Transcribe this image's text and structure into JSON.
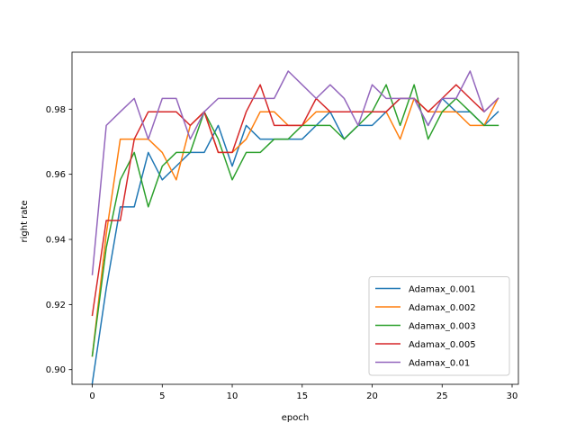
{
  "chart_data": {
    "type": "line",
    "title": "",
    "xlabel": "epoch",
    "ylabel": "right rate",
    "xlim": [
      -1.45,
      30.45
    ],
    "ylim": [
      0.8955,
      0.9975
    ],
    "xticks": [
      0,
      5,
      10,
      15,
      20,
      25,
      30
    ],
    "yticks": [
      0.9,
      0.92,
      0.94,
      0.96,
      0.98
    ],
    "ytick_labels": [
      "0.90",
      "0.92",
      "0.94",
      "0.96",
      "0.98"
    ],
    "grid": false,
    "legend_position": "lower-right",
    "x": [
      0,
      1,
      2,
      3,
      4,
      5,
      6,
      7,
      8,
      9,
      10,
      11,
      12,
      13,
      14,
      15,
      16,
      17,
      18,
      19,
      20,
      21,
      22,
      23,
      24,
      25,
      26,
      27,
      28,
      29
    ],
    "series": [
      {
        "name": "Adamax_0.001",
        "color": "#1f77b4",
        "values": [
          0.8958,
          0.925,
          0.95,
          0.95,
          0.9667,
          0.9583,
          0.9625,
          0.9667,
          0.9667,
          0.975,
          0.9625,
          0.975,
          0.9708,
          0.9708,
          0.9708,
          0.9708,
          0.975,
          0.9792,
          0.9708,
          0.975,
          0.975,
          0.9792,
          0.9833,
          0.9833,
          0.975,
          0.9833,
          0.9792,
          0.9792,
          0.975,
          0.9792
        ]
      },
      {
        "name": "Adamax_0.002",
        "color": "#ff7f0e",
        "values": [
          0.9042,
          0.9417,
          0.9708,
          0.9708,
          0.9708,
          0.9667,
          0.9583,
          0.975,
          0.9792,
          0.9667,
          0.9667,
          0.9708,
          0.9792,
          0.9792,
          0.975,
          0.975,
          0.9792,
          0.9792,
          0.9792,
          0.9792,
          0.9792,
          0.9792,
          0.9708,
          0.9833,
          0.9792,
          0.9792,
          0.9792,
          0.975,
          0.975,
          0.9833
        ]
      },
      {
        "name": "Adamax_0.003",
        "color": "#2ca02c",
        "values": [
          0.9042,
          0.9375,
          0.9583,
          0.9667,
          0.95,
          0.9625,
          0.9667,
          0.9667,
          0.9792,
          0.9708,
          0.9583,
          0.9667,
          0.9667,
          0.9708,
          0.9708,
          0.975,
          0.975,
          0.975,
          0.9708,
          0.975,
          0.9792,
          0.9875,
          0.975,
          0.9875,
          0.9708,
          0.9792,
          0.9833,
          0.9792,
          0.975,
          0.975
        ]
      },
      {
        "name": "Adamax_0.005",
        "color": "#d62728",
        "values": [
          0.9167,
          0.9458,
          0.9458,
          0.9708,
          0.9792,
          0.9792,
          0.9792,
          0.975,
          0.9792,
          0.9667,
          0.9667,
          0.9792,
          0.9875,
          0.975,
          0.975,
          0.975,
          0.9833,
          0.9792,
          0.9792,
          0.9792,
          0.9792,
          0.9792,
          0.9833,
          0.9833,
          0.9792,
          0.9833,
          0.9875,
          0.9833,
          0.9792,
          0.9833
        ]
      },
      {
        "name": "Adamax_0.01",
        "color": "#9467bd",
        "values": [
          0.9292,
          0.975,
          0.9792,
          0.9833,
          0.9708,
          0.9833,
          0.9833,
          0.9708,
          0.9792,
          0.9833,
          0.9833,
          0.9833,
          0.9833,
          0.9833,
          0.9917,
          0.9875,
          0.9833,
          0.9875,
          0.9833,
          0.975,
          0.9875,
          0.9833,
          0.9833,
          0.9833,
          0.975,
          0.9833,
          0.9833,
          0.9917,
          0.9792,
          0.9833
        ]
      }
    ]
  }
}
